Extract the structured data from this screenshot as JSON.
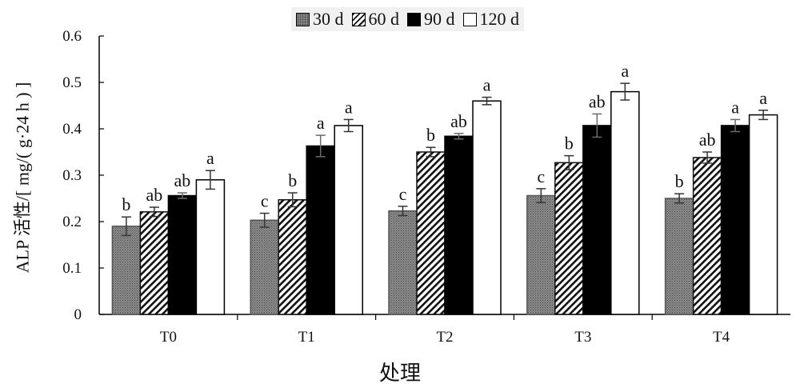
{
  "chart_data": {
    "type": "bar",
    "title": "",
    "xlabel": "处理",
    "ylabel": "ALP 活性/[ mg/( g·24 h ) ]",
    "categories": [
      "T0",
      "T1",
      "T2",
      "T3",
      "T4"
    ],
    "ylim": [
      0,
      0.6
    ],
    "yticks": [
      "0",
      "0.1",
      "0.2",
      "0.3",
      "0.4",
      "0.5",
      "0.6"
    ],
    "grid": false,
    "legend_position": "top-center",
    "series": [
      {
        "name": "30 d",
        "pattern": "dotted-gray",
        "color": "#8a8a8a",
        "values": [
          0.19,
          0.203,
          0.223,
          0.256,
          0.25
        ],
        "errors": [
          0.02,
          0.015,
          0.01,
          0.015,
          0.01
        ],
        "significance": [
          "b",
          "c",
          "c",
          "c",
          "b"
        ]
      },
      {
        "name": "60 d",
        "pattern": "diagonal-hatch",
        "color": "#111111",
        "values": [
          0.221,
          0.247,
          0.35,
          0.327,
          0.338
        ],
        "errors": [
          0.01,
          0.015,
          0.01,
          0.015,
          0.012
        ],
        "significance": [
          "ab",
          "b",
          "b",
          "b",
          "ab"
        ]
      },
      {
        "name": "90 d",
        "pattern": "solid-black",
        "color": "#000000",
        "values": [
          0.256,
          0.363,
          0.384,
          0.407,
          0.407
        ],
        "errors": [
          0.006,
          0.023,
          0.006,
          0.025,
          0.013
        ],
        "significance": [
          "ab",
          "a",
          "ab",
          "ab",
          "a"
        ]
      },
      {
        "name": "120 d",
        "pattern": "white",
        "color": "#ffffff",
        "values": [
          0.29,
          0.407,
          0.46,
          0.48,
          0.43
        ],
        "errors": [
          0.02,
          0.013,
          0.008,
          0.018,
          0.01
        ],
        "significance": [
          "a",
          "a",
          "a",
          "a",
          "a"
        ]
      }
    ]
  }
}
